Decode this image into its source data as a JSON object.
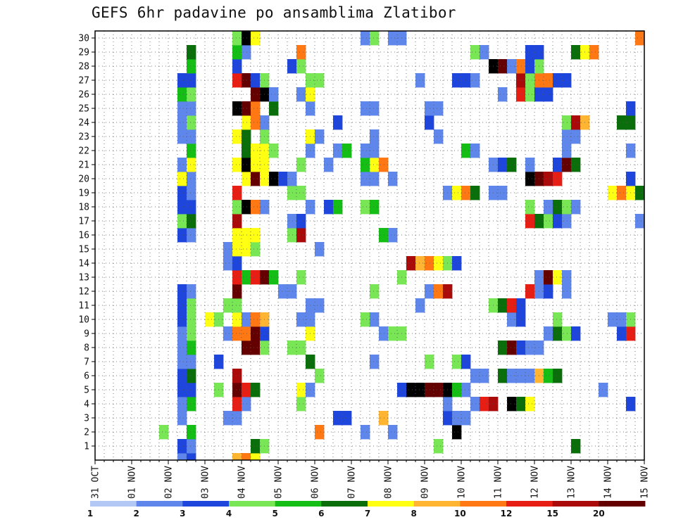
{
  "title": "GEFS 6hr padavine po ansamblima Zlatibor",
  "chart_data": {
    "type": "heatmap",
    "title": "GEFS 6hr padavine po ansamblima Zlatibor",
    "xlabel": "",
    "ylabel": "",
    "x_ticks": [
      "31 OCT",
      "01 NOV",
      "02 NOV",
      "03 NOV",
      "04 NOV",
      "05 NOV",
      "06 NOV",
      "07 NOV",
      "08 NOV",
      "09 NOV",
      "10 NOV",
      "11 NOV",
      "12 NOV",
      "13 NOV",
      "14 NOV",
      "15 NOV"
    ],
    "y_ticks": [
      "1",
      "2",
      "3",
      "4",
      "5",
      "6",
      "7",
      "8",
      "9",
      "10",
      "11",
      "12",
      "13",
      "14",
      "15",
      "16",
      "17",
      "18",
      "19",
      "20",
      "21",
      "22",
      "23",
      "24",
      "25",
      "26",
      "27",
      "28",
      "29",
      "30"
    ],
    "ylim": [
      0,
      30
    ],
    "time_steps": 60,
    "grid": true,
    "colorbar": {
      "placement": "bottom",
      "labels": [
        "1",
        "2",
        "3",
        "4",
        "5",
        "6",
        "7",
        "8",
        "10",
        "12",
        "15",
        "20"
      ],
      "colors": [
        "#b4c8f5",
        "#5f87eb",
        "#1e46dc",
        "#78e655",
        "#14be14",
        "#0a6e0a",
        "#ffff14",
        "#ffb432",
        "#ff7814",
        "#e61e14",
        "#aa0a0a",
        "#640000"
      ]
    },
    "cells": [
      [
        0,
        9,
        1
      ],
      [
        0,
        10,
        2
      ],
      [
        0,
        15,
        7
      ],
      [
        0,
        16,
        8
      ],
      [
        0,
        17,
        6
      ],
      [
        1,
        9,
        2
      ],
      [
        1,
        10,
        1
      ],
      [
        1,
        17,
        5
      ],
      [
        1,
        18,
        3
      ],
      [
        1,
        37,
        3
      ],
      [
        1,
        52,
        5
      ],
      [
        2,
        7,
        3
      ],
      [
        2,
        10,
        4
      ],
      [
        2,
        24,
        8
      ],
      [
        2,
        29,
        1
      ],
      [
        2,
        32,
        1
      ],
      [
        2,
        39,
        12
      ],
      [
        3,
        9,
        1
      ],
      [
        3,
        14,
        1
      ],
      [
        3,
        15,
        1
      ],
      [
        3,
        26,
        2
      ],
      [
        3,
        27,
        2
      ],
      [
        3,
        31,
        7
      ],
      [
        3,
        38,
        2
      ],
      [
        3,
        39,
        1
      ],
      [
        3,
        40,
        1
      ],
      [
        4,
        9,
        1
      ],
      [
        4,
        10,
        4
      ],
      [
        4,
        15,
        9
      ],
      [
        4,
        16,
        1
      ],
      [
        4,
        22,
        3
      ],
      [
        4,
        38,
        1
      ],
      [
        4,
        41,
        1
      ],
      [
        4,
        42,
        9
      ],
      [
        4,
        43,
        10
      ],
      [
        4,
        45,
        12
      ],
      [
        4,
        46,
        5
      ],
      [
        4,
        47,
        6
      ],
      [
        4,
        58,
        2
      ],
      [
        5,
        9,
        2
      ],
      [
        5,
        10,
        2
      ],
      [
        5,
        13,
        3
      ],
      [
        5,
        15,
        11
      ],
      [
        5,
        16,
        9
      ],
      [
        5,
        17,
        5
      ],
      [
        5,
        22,
        6
      ],
      [
        5,
        23,
        1
      ],
      [
        5,
        33,
        2
      ],
      [
        5,
        34,
        12
      ],
      [
        5,
        35,
        12
      ],
      [
        5,
        36,
        11
      ],
      [
        5,
        37,
        11
      ],
      [
        5,
        38,
        12
      ],
      [
        5,
        39,
        4
      ],
      [
        5,
        40,
        1
      ],
      [
        5,
        55,
        1
      ],
      [
        6,
        9,
        2
      ],
      [
        6,
        10,
        5
      ],
      [
        6,
        15,
        10
      ],
      [
        6,
        24,
        3
      ],
      [
        6,
        41,
        1
      ],
      [
        6,
        42,
        1
      ],
      [
        6,
        44,
        5
      ],
      [
        6,
        45,
        1
      ],
      [
        6,
        46,
        1
      ],
      [
        6,
        47,
        1
      ],
      [
        6,
        48,
        7
      ],
      [
        6,
        49,
        4
      ],
      [
        6,
        50,
        5
      ],
      [
        7,
        9,
        1
      ],
      [
        7,
        10,
        1
      ],
      [
        7,
        13,
        2
      ],
      [
        7,
        23,
        5
      ],
      [
        7,
        30,
        1
      ],
      [
        7,
        36,
        3
      ],
      [
        7,
        39,
        3
      ],
      [
        7,
        40,
        2
      ],
      [
        8,
        9,
        1
      ],
      [
        8,
        10,
        4
      ],
      [
        8,
        16,
        11
      ],
      [
        8,
        17,
        11
      ],
      [
        8,
        18,
        3
      ],
      [
        8,
        21,
        3
      ],
      [
        8,
        22,
        3
      ],
      [
        8,
        44,
        5
      ],
      [
        8,
        45,
        11
      ],
      [
        8,
        46,
        2
      ],
      [
        8,
        47,
        1
      ],
      [
        8,
        48,
        1
      ],
      [
        9,
        9,
        1
      ],
      [
        9,
        10,
        3
      ],
      [
        9,
        14,
        1
      ],
      [
        9,
        15,
        8
      ],
      [
        9,
        16,
        8
      ],
      [
        9,
        17,
        11
      ],
      [
        9,
        18,
        2
      ],
      [
        9,
        23,
        6
      ],
      [
        9,
        31,
        1
      ],
      [
        9,
        32,
        3
      ],
      [
        9,
        33,
        3
      ],
      [
        9,
        49,
        1
      ],
      [
        9,
        50,
        5
      ],
      [
        9,
        51,
        3
      ],
      [
        9,
        52,
        2
      ],
      [
        9,
        57,
        2
      ],
      [
        9,
        58,
        9
      ],
      [
        10,
        9,
        2
      ],
      [
        10,
        10,
        3
      ],
      [
        10,
        12,
        6
      ],
      [
        10,
        13,
        3
      ],
      [
        10,
        15,
        6
      ],
      [
        10,
        16,
        1
      ],
      [
        10,
        17,
        8
      ],
      [
        10,
        18,
        7
      ],
      [
        10,
        22,
        1
      ],
      [
        10,
        23,
        1
      ],
      [
        10,
        29,
        3
      ],
      [
        10,
        30,
        1
      ],
      [
        10,
        45,
        1
      ],
      [
        10,
        46,
        2
      ],
      [
        10,
        50,
        3
      ],
      [
        10,
        56,
        1
      ],
      [
        10,
        57,
        1
      ],
      [
        10,
        58,
        3
      ],
      [
        11,
        9,
        2
      ],
      [
        11,
        10,
        3
      ],
      [
        11,
        14,
        3
      ],
      [
        11,
        15,
        3
      ],
      [
        11,
        23,
        1
      ],
      [
        11,
        24,
        1
      ],
      [
        11,
        35,
        1
      ],
      [
        11,
        43,
        3
      ],
      [
        11,
        44,
        5
      ],
      [
        11,
        45,
        9
      ],
      [
        11,
        46,
        2
      ],
      [
        12,
        9,
        2
      ],
      [
        12,
        10,
        1
      ],
      [
        12,
        15,
        11
      ],
      [
        12,
        20,
        1
      ],
      [
        12,
        21,
        1
      ],
      [
        12,
        30,
        3
      ],
      [
        12,
        36,
        1
      ],
      [
        12,
        37,
        8
      ],
      [
        12,
        38,
        10
      ],
      [
        12,
        47,
        9
      ],
      [
        12,
        48,
        1
      ],
      [
        12,
        49,
        2
      ],
      [
        12,
        51,
        1
      ],
      [
        13,
        15,
        9
      ],
      [
        13,
        16,
        4
      ],
      [
        13,
        17,
        9
      ],
      [
        13,
        18,
        11
      ],
      [
        13,
        19,
        4
      ],
      [
        13,
        22,
        3
      ],
      [
        13,
        33,
        3
      ],
      [
        13,
        48,
        1
      ],
      [
        13,
        49,
        11
      ],
      [
        13,
        50,
        6
      ],
      [
        13,
        51,
        1
      ],
      [
        14,
        14,
        1
      ],
      [
        14,
        15,
        2
      ],
      [
        14,
        34,
        10
      ],
      [
        14,
        35,
        7
      ],
      [
        14,
        36,
        8
      ],
      [
        14,
        37,
        6
      ],
      [
        14,
        38,
        3
      ],
      [
        14,
        39,
        2
      ],
      [
        15,
        14,
        1
      ],
      [
        15,
        15,
        6
      ],
      [
        15,
        16,
        6
      ],
      [
        15,
        17,
        3
      ],
      [
        15,
        24,
        1
      ],
      [
        16,
        9,
        2
      ],
      [
        16,
        10,
        1
      ],
      [
        16,
        15,
        6
      ],
      [
        16,
        16,
        6
      ],
      [
        16,
        17,
        6
      ],
      [
        16,
        21,
        3
      ],
      [
        16,
        22,
        10
      ],
      [
        16,
        31,
        4
      ],
      [
        16,
        32,
        1
      ],
      [
        17,
        9,
        3
      ],
      [
        17,
        10,
        5
      ],
      [
        17,
        15,
        10
      ],
      [
        17,
        21,
        1
      ],
      [
        17,
        22,
        2
      ],
      [
        17,
        47,
        9
      ],
      [
        17,
        48,
        5
      ],
      [
        17,
        49,
        3
      ],
      [
        17,
        50,
        2
      ],
      [
        17,
        51,
        1
      ],
      [
        17,
        59,
        1
      ],
      [
        18,
        9,
        2
      ],
      [
        18,
        10,
        2
      ],
      [
        18,
        15,
        3
      ],
      [
        18,
        16,
        12
      ],
      [
        18,
        17,
        8
      ],
      [
        18,
        18,
        1
      ],
      [
        18,
        23,
        1
      ],
      [
        18,
        25,
        2
      ],
      [
        18,
        26,
        4
      ],
      [
        18,
        29,
        3
      ],
      [
        18,
        30,
        4
      ],
      [
        18,
        47,
        3
      ],
      [
        18,
        49,
        1
      ],
      [
        18,
        50,
        5
      ],
      [
        18,
        51,
        3
      ],
      [
        18,
        52,
        1
      ],
      [
        19,
        9,
        2
      ],
      [
        19,
        10,
        1
      ],
      [
        19,
        15,
        9
      ],
      [
        19,
        21,
        3
      ],
      [
        19,
        22,
        3
      ],
      [
        19,
        38,
        1
      ],
      [
        19,
        39,
        6
      ],
      [
        19,
        40,
        8
      ],
      [
        19,
        41,
        5
      ],
      [
        19,
        43,
        1
      ],
      [
        19,
        44,
        1
      ],
      [
        19,
        56,
        6
      ],
      [
        19,
        57,
        8
      ],
      [
        19,
        58,
        6
      ],
      [
        19,
        59,
        5
      ],
      [
        20,
        9,
        6
      ],
      [
        20,
        10,
        1
      ],
      [
        20,
        16,
        6
      ],
      [
        20,
        17,
        11
      ],
      [
        20,
        18,
        6
      ],
      [
        20,
        19,
        12
      ],
      [
        20,
        20,
        2
      ],
      [
        20,
        21,
        1
      ],
      [
        20,
        29,
        1
      ],
      [
        20,
        30,
        1
      ],
      [
        20,
        32,
        1
      ],
      [
        20,
        47,
        12
      ],
      [
        20,
        48,
        11
      ],
      [
        20,
        49,
        10
      ],
      [
        20,
        50,
        9
      ],
      [
        20,
        58,
        2
      ],
      [
        21,
        9,
        1
      ],
      [
        21,
        10,
        6
      ],
      [
        21,
        15,
        6
      ],
      [
        21,
        16,
        12
      ],
      [
        21,
        17,
        6
      ],
      [
        21,
        18,
        6
      ],
      [
        21,
        22,
        3
      ],
      [
        21,
        25,
        1
      ],
      [
        21,
        29,
        4
      ],
      [
        21,
        30,
        6
      ],
      [
        21,
        31,
        8
      ],
      [
        21,
        43,
        1
      ],
      [
        21,
        44,
        2
      ],
      [
        21,
        45,
        5
      ],
      [
        21,
        47,
        1
      ],
      [
        21,
        50,
        2
      ],
      [
        21,
        51,
        11
      ],
      [
        21,
        52,
        5
      ],
      [
        22,
        10,
        4
      ],
      [
        22,
        16,
        5
      ],
      [
        22,
        17,
        6
      ],
      [
        22,
        18,
        6
      ],
      [
        22,
        19,
        3
      ],
      [
        22,
        23,
        1
      ],
      [
        22,
        26,
        1
      ],
      [
        22,
        27,
        4
      ],
      [
        22,
        29,
        1
      ],
      [
        22,
        30,
        1
      ],
      [
        22,
        40,
        4
      ],
      [
        22,
        41,
        1
      ],
      [
        22,
        51,
        1
      ],
      [
        22,
        58,
        1
      ],
      [
        23,
        9,
        1
      ],
      [
        23,
        10,
        1
      ],
      [
        23,
        15,
        6
      ],
      [
        23,
        16,
        5
      ],
      [
        23,
        18,
        3
      ],
      [
        23,
        23,
        6
      ],
      [
        23,
        24,
        1
      ],
      [
        23,
        30,
        1
      ],
      [
        23,
        37,
        1
      ],
      [
        23,
        51,
        1
      ],
      [
        23,
        52,
        1
      ],
      [
        24,
        9,
        1
      ],
      [
        24,
        10,
        3
      ],
      [
        24,
        16,
        6
      ],
      [
        24,
        17,
        8
      ],
      [
        24,
        18,
        1
      ],
      [
        24,
        26,
        2
      ],
      [
        24,
        36,
        2
      ],
      [
        24,
        51,
        3
      ],
      [
        24,
        52,
        10
      ],
      [
        24,
        53,
        7
      ],
      [
        24,
        57,
        5
      ],
      [
        24,
        58,
        5
      ],
      [
        25,
        9,
        1
      ],
      [
        25,
        10,
        1
      ],
      [
        25,
        19,
        5
      ],
      [
        25,
        15,
        12
      ],
      [
        25,
        16,
        11
      ],
      [
        25,
        17,
        8
      ],
      [
        25,
        23,
        1
      ],
      [
        25,
        29,
        1
      ],
      [
        25,
        30,
        1
      ],
      [
        25,
        36,
        1
      ],
      [
        25,
        37,
        1
      ],
      [
        25,
        58,
        2
      ],
      [
        26,
        9,
        4
      ],
      [
        26,
        10,
        3
      ],
      [
        26,
        17,
        11
      ],
      [
        26,
        18,
        12
      ],
      [
        26,
        19,
        1
      ],
      [
        26,
        22,
        1
      ],
      [
        26,
        23,
        6
      ],
      [
        26,
        44,
        1
      ],
      [
        26,
        46,
        9
      ],
      [
        26,
        47,
        3
      ],
      [
        26,
        48,
        2
      ],
      [
        26,
        49,
        2
      ],
      [
        27,
        9,
        2
      ],
      [
        27,
        10,
        2
      ],
      [
        27,
        15,
        9
      ],
      [
        27,
        16,
        11
      ],
      [
        27,
        17,
        2
      ],
      [
        27,
        18,
        3
      ],
      [
        27,
        23,
        3
      ],
      [
        27,
        24,
        3
      ],
      [
        27,
        35,
        1
      ],
      [
        27,
        39,
        2
      ],
      [
        27,
        40,
        2
      ],
      [
        27,
        41,
        1
      ],
      [
        27,
        46,
        10
      ],
      [
        27,
        47,
        3
      ],
      [
        27,
        48,
        8
      ],
      [
        27,
        49,
        8
      ],
      [
        27,
        50,
        2
      ],
      [
        27,
        51,
        2
      ],
      [
        28,
        10,
        4
      ],
      [
        28,
        15,
        2
      ],
      [
        28,
        21,
        2
      ],
      [
        28,
        22,
        3
      ],
      [
        28,
        43,
        12
      ],
      [
        28,
        44,
        11
      ],
      [
        28,
        45,
        1
      ],
      [
        28,
        46,
        8
      ],
      [
        28,
        47,
        2
      ],
      [
        28,
        48,
        3
      ],
      [
        29,
        10,
        5
      ],
      [
        29,
        15,
        4
      ],
      [
        29,
        16,
        1
      ],
      [
        29,
        22,
        8
      ],
      [
        29,
        41,
        3
      ],
      [
        29,
        42,
        1
      ],
      [
        29,
        47,
        2
      ],
      [
        29,
        48,
        2
      ],
      [
        29,
        52,
        5
      ],
      [
        29,
        53,
        6
      ],
      [
        29,
        54,
        8
      ],
      [
        30,
        15,
        3
      ],
      [
        30,
        16,
        12
      ],
      [
        30,
        17,
        6
      ],
      [
        30,
        29,
        1
      ],
      [
        30,
        30,
        3
      ],
      [
        30,
        32,
        1
      ],
      [
        30,
        33,
        1
      ],
      [
        30,
        59,
        8
      ]
    ]
  }
}
